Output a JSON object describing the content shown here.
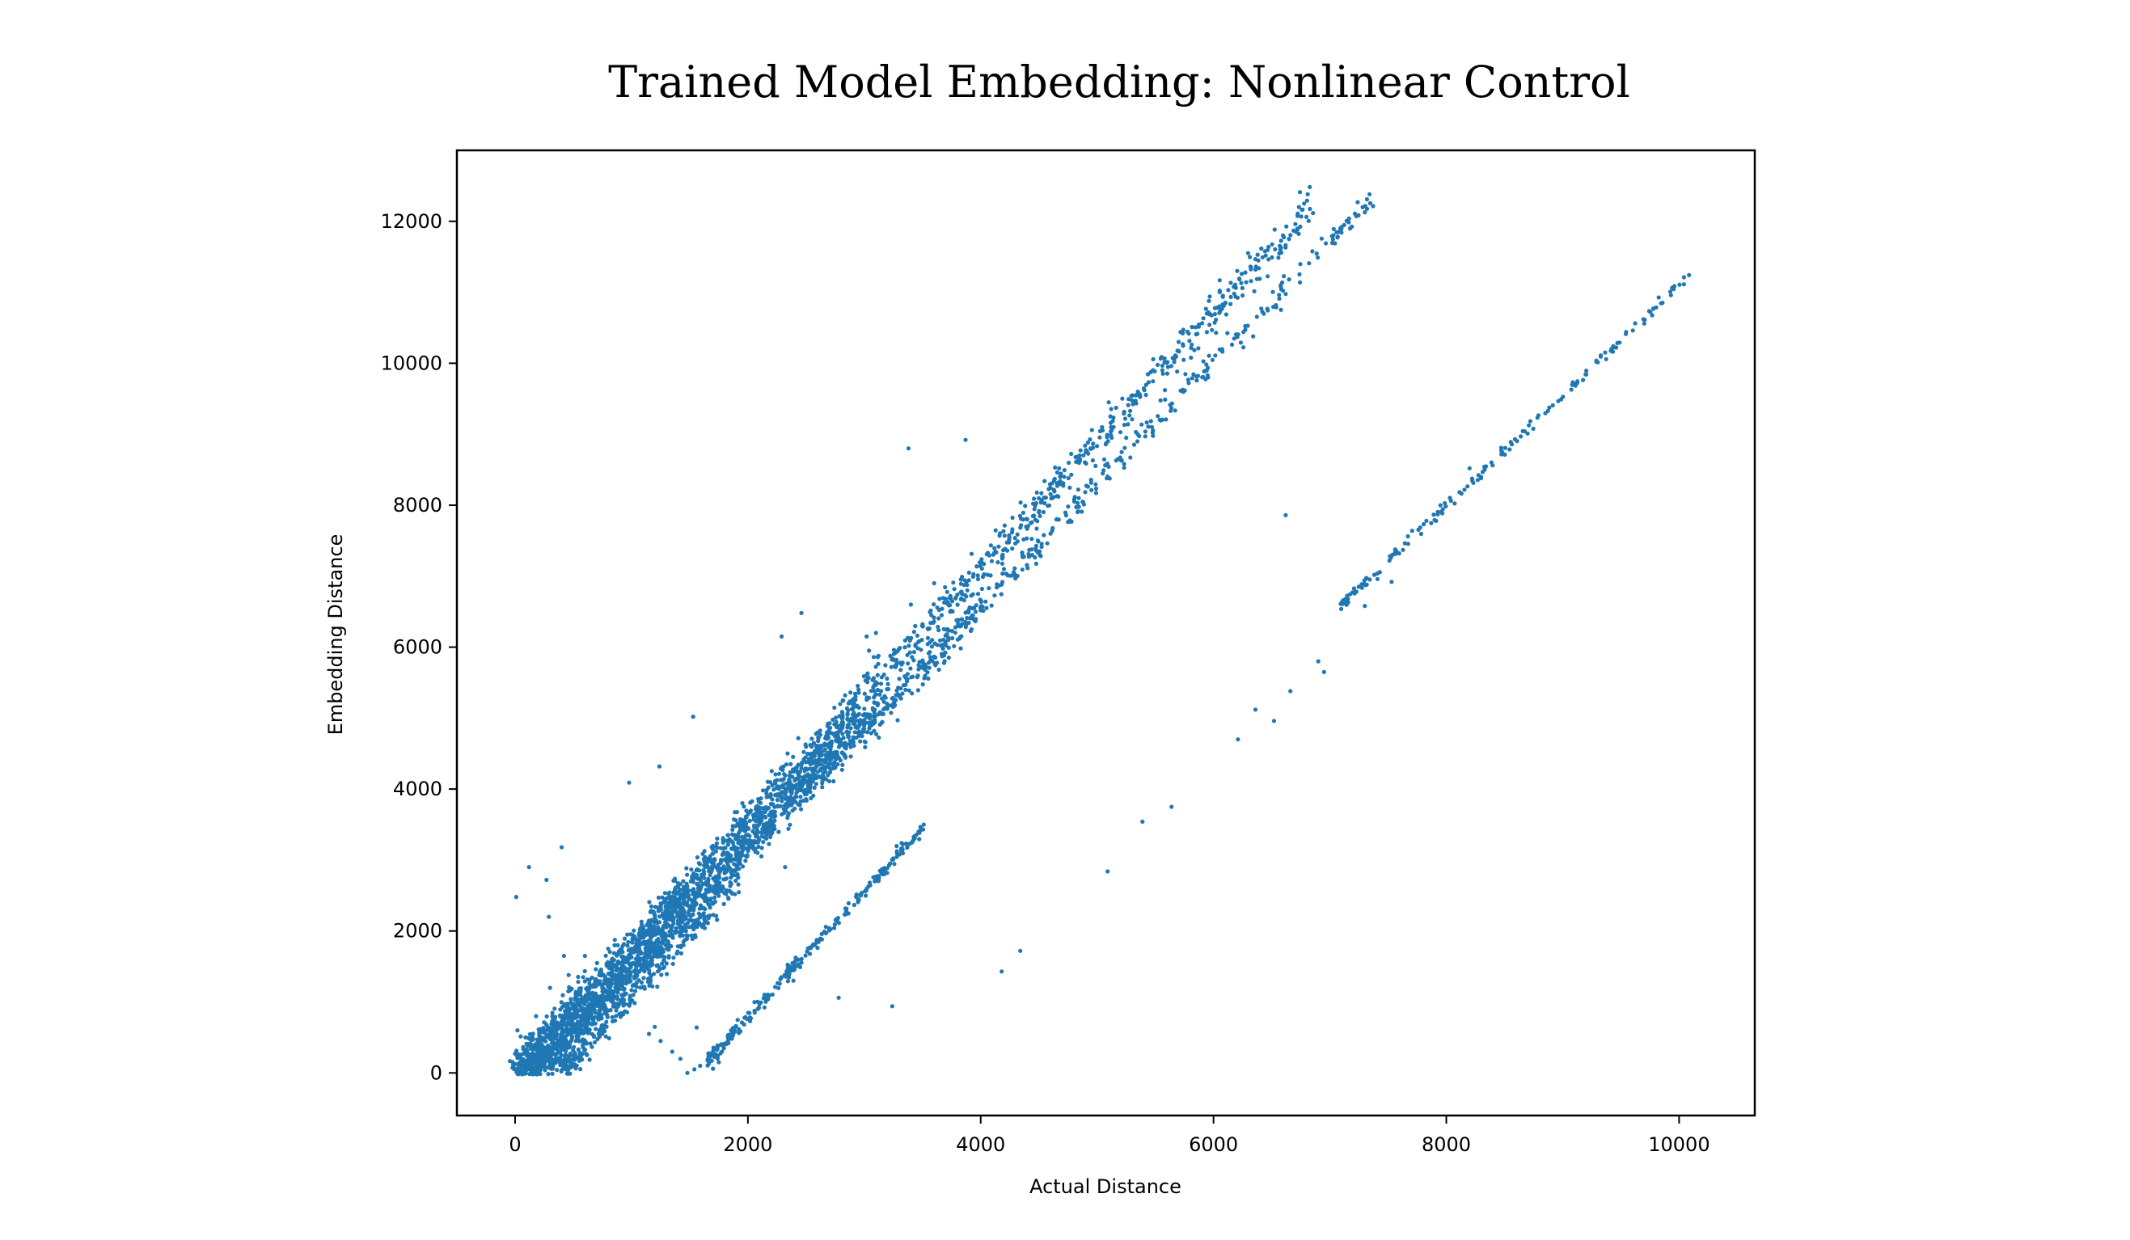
{
  "chart_data": {
    "type": "scatter",
    "title": "Trained Model Embedding: Nonlinear Control",
    "xlabel": "Actual Distance",
    "ylabel": "Embedding Distance",
    "xlim": [
      -500,
      10650
    ],
    "ylim": [
      -600,
      13000
    ],
    "xticks": [
      0,
      2000,
      4000,
      6000,
      8000,
      10000
    ],
    "yticks": [
      0,
      2000,
      4000,
      6000,
      8000,
      10000,
      12000
    ],
    "grid": false,
    "legend": "none",
    "marker_color": "#1f77b4",
    "series": [
      {
        "segments": [
          {
            "from": [
              0,
              0
            ],
            "to": [
              6880,
              12250
            ],
            "count": 1100,
            "spread": 130
          },
          {
            "from": [
              50,
              0
            ],
            "to": [
              3000,
              5100
            ],
            "count": 1400,
            "spread": 170
          },
          {
            "from": [
              150,
              0
            ],
            "to": [
              7380,
              12380
            ],
            "count": 700,
            "spread": 90
          },
          {
            "from": [
              250,
              0
            ],
            "to": [
              4000,
              6600
            ],
            "count": 500,
            "spread": 120
          },
          {
            "from": [
              400,
              0
            ],
            "to": [
              1950,
              2800
            ],
            "count": 250,
            "spread": 100
          },
          {
            "from": [
              1650,
              150
            ],
            "to": [
              3520,
              3500
            ],
            "count": 260,
            "spread": 45
          },
          {
            "from": [
              7100,
              6600
            ],
            "to": [
              10130,
              11300
            ],
            "count": 170,
            "spread": 40
          }
        ],
        "points": [
          [
            3380,
            8800
          ],
          [
            3870,
            8920
          ],
          [
            2290,
            6150
          ],
          [
            2460,
            6480
          ],
          [
            1530,
            5020
          ],
          [
            980,
            4090
          ],
          [
            1240,
            4320
          ],
          [
            400,
            3180
          ],
          [
            120,
            2900
          ],
          [
            270,
            2720
          ],
          [
            10,
            2480
          ],
          [
            290,
            2200
          ],
          [
            420,
            1650
          ],
          [
            460,
            1380
          ],
          [
            20,
            600
          ],
          [
            1560,
            640
          ],
          [
            2780,
            1060
          ],
          [
            3240,
            940
          ],
          [
            4180,
            1430
          ],
          [
            4340,
            1720
          ],
          [
            5090,
            2840
          ],
          [
            5390,
            3540
          ],
          [
            5640,
            3750
          ],
          [
            6210,
            4700
          ],
          [
            6360,
            5120
          ],
          [
            6520,
            4960
          ],
          [
            6660,
            5380
          ],
          [
            6900,
            5800
          ],
          [
            6950,
            5650
          ],
          [
            6620,
            7860
          ],
          [
            7300,
            6580
          ],
          [
            7530,
            6920
          ],
          [
            8200,
            8520
          ],
          [
            5100,
            9450
          ],
          [
            5350,
            9600
          ],
          [
            4600,
            7600
          ],
          [
            4200,
            7100
          ],
          [
            3040,
            5950
          ],
          [
            2950,
            5400
          ],
          [
            3020,
            6150
          ],
          [
            3900,
            7050
          ],
          [
            4400,
            7800
          ],
          [
            4850,
            8700
          ],
          [
            5250,
            8950
          ],
          [
            5700,
            10300
          ],
          [
            6050,
            10800
          ],
          [
            4500,
            7900
          ],
          [
            3600,
            6900
          ],
          [
            3100,
            6200
          ],
          [
            3400,
            6600
          ],
          [
            1480,
            0
          ],
          [
            1540,
            50
          ],
          [
            1590,
            100
          ],
          [
            1700,
            60
          ],
          [
            1750,
            150
          ],
          [
            1150,
            550
          ],
          [
            1250,
            450
          ],
          [
            1350,
            300
          ],
          [
            1420,
            200
          ],
          [
            1200,
            650
          ],
          [
            2320,
            2900
          ],
          [
            2150,
            3600
          ],
          [
            2000,
            3450
          ],
          [
            1700,
            3200
          ],
          [
            600,
            1650
          ],
          [
            800,
            1750
          ],
          [
            700,
            1300
          ],
          [
            300,
            1200
          ],
          [
            180,
            800
          ],
          [
            90,
            500
          ]
        ]
      }
    ]
  }
}
